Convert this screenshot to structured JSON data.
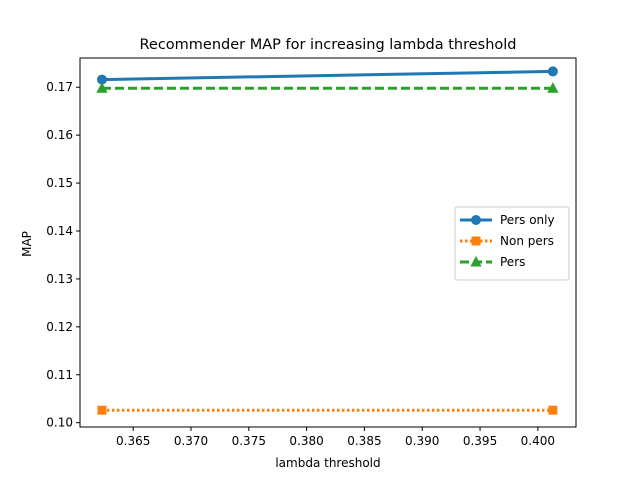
{
  "chart_data": {
    "type": "line",
    "title": "Recommender MAP for increasing lambda threshold",
    "xlabel": "lambda threshold",
    "ylabel": "MAP",
    "xlim": [
      0.3604,
      0.4033
    ],
    "ylim": [
      0.0991,
      0.1761
    ],
    "xticks": [
      0.365,
      0.37,
      0.375,
      0.38,
      0.385,
      0.39,
      0.395,
      0.4
    ],
    "xtick_labels": [
      "0.365",
      "0.370",
      "0.375",
      "0.380",
      "0.385",
      "0.390",
      "0.395",
      "0.400"
    ],
    "yticks": [
      0.1,
      0.11,
      0.12,
      0.13,
      0.14,
      0.15,
      0.16,
      0.17
    ],
    "ytick_labels": [
      "0.10",
      "0.11",
      "0.12",
      "0.13",
      "0.14",
      "0.15",
      "0.16",
      "0.17"
    ],
    "grid": false,
    "legend_position": "center-right",
    "series": [
      {
        "name": "Pers only",
        "x": [
          0.3623,
          0.4013
        ],
        "y": [
          0.1716,
          0.1733
        ],
        "color": "#1f77b4",
        "linestyle": "solid",
        "marker": "circle"
      },
      {
        "name": "Non pers",
        "x": [
          0.3623,
          0.4013
        ],
        "y": [
          0.1026,
          0.1026
        ],
        "color": "#ff7f0e",
        "linestyle": "dotted",
        "marker": "square"
      },
      {
        "name": "Pers",
        "x": [
          0.3623,
          0.4013
        ],
        "y": [
          0.1698,
          0.1698
        ],
        "color": "#2ca02c",
        "linestyle": "dashed",
        "marker": "triangle"
      }
    ]
  }
}
